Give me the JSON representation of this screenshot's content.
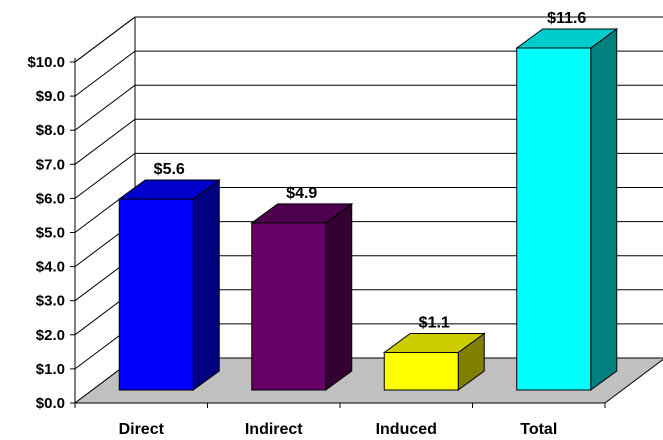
{
  "chart_data": {
    "type": "bar",
    "categories": [
      "Direct",
      "Indirect",
      "Induced",
      "Total"
    ],
    "values": [
      5.6,
      4.9,
      1.1,
      11.6
    ],
    "data_labels": [
      "$5.6",
      "$4.9",
      "$1.1",
      "$11.6"
    ],
    "y_ticks": [
      "$0.0",
      "$1.0",
      "$2.0",
      "$3.0",
      "$4.0",
      "$5.0",
      "$6.0",
      "$7.0",
      "$8.0",
      "$9.0",
      "$10.0"
    ],
    "ylim": [
      0,
      10
    ],
    "grid": true,
    "legend": "none",
    "colors": {
      "front": [
        "#0000ff",
        "#660066",
        "#ffff00",
        "#00ffff"
      ],
      "top": [
        "#0000cc",
        "#4d004d",
        "#cccc00",
        "#00cccc"
      ],
      "side": [
        "#000080",
        "#330033",
        "#808000",
        "#008080"
      ],
      "floor": "#c0c0c0"
    }
  }
}
